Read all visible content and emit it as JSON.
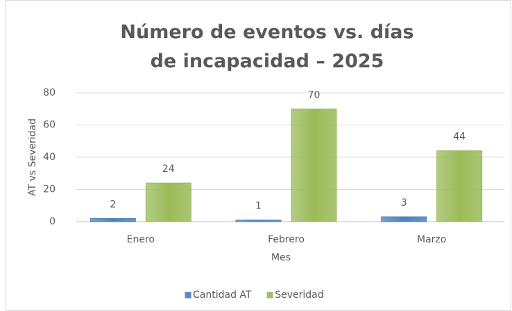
{
  "chart_data": {
    "type": "bar",
    "title": "Número de eventos vs. días de incapacidad – 2025",
    "x_label": "Mes",
    "y_label": "AT vs Severidad",
    "categories": [
      "Enero",
      "Febrero",
      "Marzo"
    ],
    "series": [
      {
        "name": "Cantidad AT",
        "color": "#4f81bd",
        "values": [
          2,
          1,
          3
        ]
      },
      {
        "name": "Severidad",
        "color": "#9bbb59",
        "values": [
          24,
          70,
          44
        ]
      }
    ],
    "ylim": [
      0,
      80
    ],
    "yticks": [
      0,
      20,
      40,
      60,
      80
    ],
    "grid": true,
    "legend": "bottom"
  }
}
